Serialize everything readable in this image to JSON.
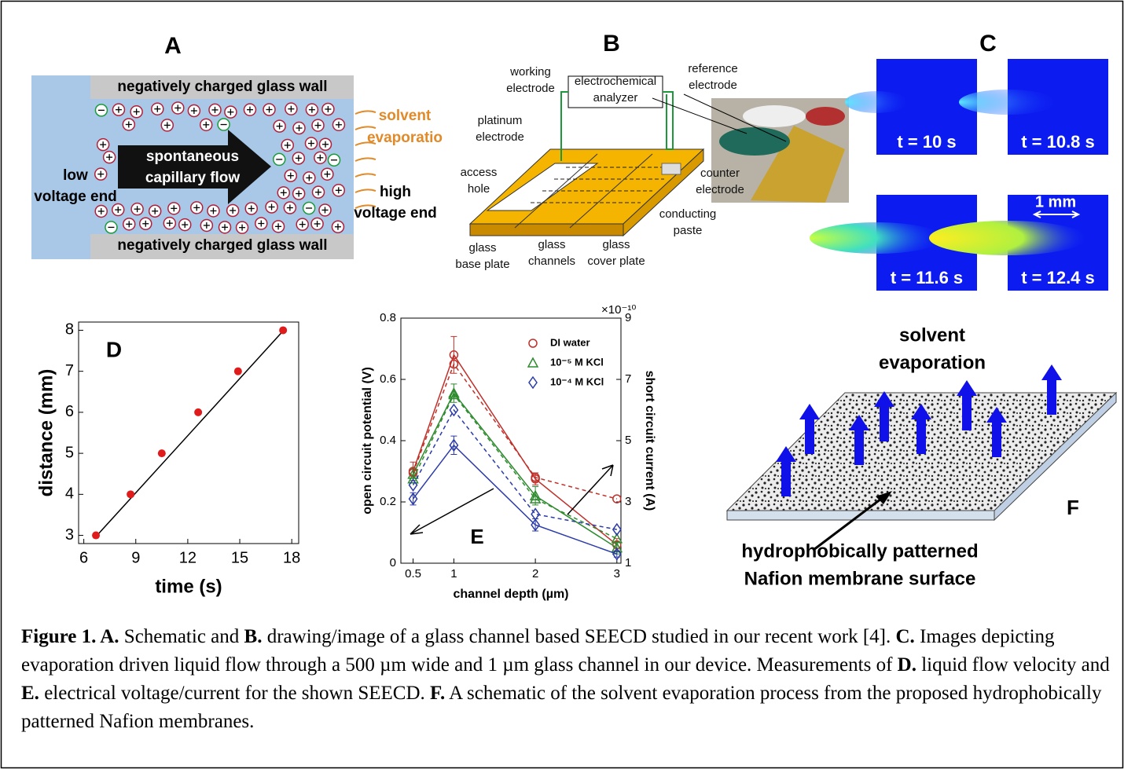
{
  "panels": {
    "A": {
      "label": "A",
      "top_wall": "negatively charged glass wall",
      "bottom_wall": "negatively charged glass wall",
      "flow": [
        "spontaneous",
        "capillary flow"
      ],
      "left_end": [
        "low",
        "voltage end"
      ],
      "right_end": [
        "high",
        "voltage end"
      ],
      "evaporation": [
        "solvent",
        "evaporatio"
      ]
    },
    "B": {
      "label": "B",
      "labels": [
        [
          "working",
          "electrode"
        ],
        [
          "electrochemical",
          "analyzer"
        ],
        [
          "reference",
          "electrode"
        ],
        [
          "platinum",
          "electrode"
        ],
        [
          "access",
          "hole"
        ],
        [
          "counter",
          "electrode"
        ],
        [
          "conducting",
          "paste"
        ],
        [
          "glass",
          "base plate"
        ],
        [
          "glass",
          "channels"
        ],
        [
          "glass",
          "cover plate"
        ]
      ]
    },
    "C": {
      "label": "C",
      "frames": [
        "t = 10 s",
        "t = 10.8 s",
        "t = 11.6 s",
        "t = 12.4 s"
      ],
      "scale_bar": "1 mm"
    },
    "F": {
      "label": "F",
      "top_text": [
        "solvent",
        "evaporation"
      ],
      "bottom_text": [
        "hydrophobically patterned",
        "Nafion membrane surface"
      ]
    }
  },
  "chart_data": [
    {
      "type": "scatter",
      "panel_label": "D",
      "x_label": "time (s)",
      "y_label": "distance (mm)",
      "x": [
        6.7,
        8.7,
        10.5,
        12.6,
        14.9,
        17.5
      ],
      "values": [
        3,
        4,
        5,
        6,
        7,
        8
      ],
      "color": "#e01b1b",
      "fit": {
        "x": [
          6.7,
          17.6
        ],
        "values": [
          2.97,
          8.03
        ],
        "color": "#000000"
      },
      "xlim": [
        5.7,
        18.4
      ],
      "ylim": [
        2.8,
        8.2
      ],
      "xticks": [
        6,
        9,
        12,
        15,
        18
      ],
      "yticks": [
        3,
        4,
        5,
        6,
        7,
        8
      ]
    },
    {
      "type": "line",
      "panel_label": "E",
      "x_label": "channel depth (µm)",
      "y_label": "open circuit potential (V)",
      "y2_label": "short circuit current (A)",
      "y2_exponent": "×10⁻¹⁰",
      "x": [
        0.5,
        1,
        2,
        3
      ],
      "series": [
        {
          "name": "DI water",
          "color": "#c0302a",
          "marker": "circle",
          "values": [
            0.3,
            0.68,
            0.275,
            0.06
          ],
          "errors": [
            0.03,
            0.06,
            0.02,
            0.02
          ]
        },
        {
          "name": "10⁻⁵ M KCl",
          "color": "#2e8b2e",
          "marker": "triangle",
          "values": [
            0.29,
            0.555,
            0.22,
            0.05
          ],
          "errors": [
            0.02,
            0.03,
            0.03,
            0.02
          ]
        },
        {
          "name": "10⁻⁴ M KCl",
          "color": "#2a3aa8",
          "marker": "diamond",
          "values": [
            0.21,
            0.385,
            0.125,
            0.03
          ],
          "errors": [
            0.02,
            0.03,
            0.02,
            0.01
          ]
        },
        {
          "color": "#c0302a",
          "marker": "circle",
          "axis": "y2",
          "line_style": "dashed",
          "values": [
            3.95,
            7.5,
            3.8,
            3.1
          ]
        },
        {
          "color": "#2e8b2e",
          "marker": "triangle",
          "axis": "y2",
          "line_style": "dashed",
          "values": [
            3.75,
            6.5,
            3.1,
            1.8
          ]
        },
        {
          "color": "#2a3aa8",
          "marker": "diamond",
          "axis": "y2",
          "line_style": "dashed",
          "values": [
            3.55,
            6.0,
            2.6,
            2.1
          ]
        }
      ],
      "xlim": [
        0.35,
        3.05
      ],
      "ylim": [
        0,
        0.8
      ],
      "y2lim": [
        1,
        9
      ],
      "xticks": [
        0.5,
        1,
        2,
        3
      ],
      "yticks": [
        0,
        0.2,
        0.4,
        0.6,
        0.8
      ],
      "y2ticks": [
        1,
        3,
        5,
        7,
        9
      ]
    }
  ],
  "caption": [
    {
      "text": "Figure 1. A.",
      "bold": true
    },
    {
      "text": "Schematic and"
    },
    {
      "text": "B.",
      "bold": true
    },
    {
      "text": "drawing/image of a glass channel based SEECD studied in our recent work [4]."
    },
    {
      "text": "C.",
      "bold": true
    },
    {
      "text": "Images depicting evaporation driven liquid flow through a 500 µm wide and 1 µm glass channel in our device. Measurements of"
    },
    {
      "text": "D.",
      "bold": true
    },
    {
      "text": "liquid flow velocity and"
    },
    {
      "text": "E.",
      "bold": true
    },
    {
      "text": "electrical voltage/current for the shown SEECD."
    },
    {
      "text": "F.",
      "bold": true
    },
    {
      "text": "A schematic of the solvent evaporation process from the proposed hydrophobically patterned Nafion membranes."
    }
  ]
}
